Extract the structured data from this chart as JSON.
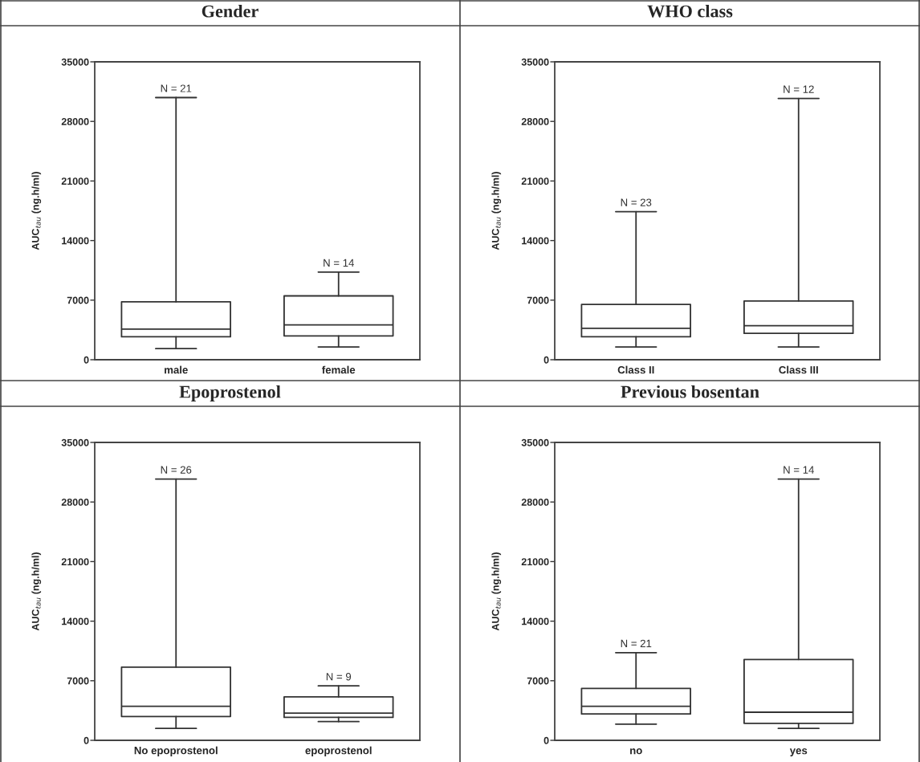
{
  "chart_data": [
    {
      "type": "box",
      "title": "Gender",
      "ylabel": "AUC$_{tau}$ (ng.h/ml)",
      "categories": [
        "male",
        "female"
      ],
      "ylim": [
        0,
        35000
      ],
      "yticks": [
        0,
        7000,
        14000,
        21000,
        28000,
        35000
      ],
      "grid": false,
      "boxes": [
        {
          "low": 1300,
          "q1": 2700,
          "median": 3600,
          "q3": 6800,
          "high": 30800
        },
        {
          "low": 1500,
          "q1": 2800,
          "median": 4100,
          "q3": 7500,
          "high": 10300
        }
      ],
      "annotations": [
        {
          "text": "N = 21",
          "x": "male",
          "y": 30800
        },
        {
          "text": "N = 14",
          "x": "female",
          "y": 10300
        }
      ]
    },
    {
      "type": "box",
      "title": "WHO class",
      "ylabel": "AUC$_{tau}$ (ng.h/ml)",
      "categories": [
        "Class II",
        "Class III"
      ],
      "ylim": [
        0,
        35000
      ],
      "yticks": [
        0,
        7000,
        14000,
        21000,
        28000,
        35000
      ],
      "grid": false,
      "boxes": [
        {
          "low": 1500,
          "q1": 2700,
          "median": 3700,
          "q3": 6500,
          "high": 17400
        },
        {
          "low": 1500,
          "q1": 3100,
          "median": 4000,
          "q3": 6900,
          "high": 30700
        }
      ],
      "annotations": [
        {
          "text": "N = 23",
          "x": "Class II",
          "y": 17400
        },
        {
          "text": "N = 12",
          "x": "Class III",
          "y": 30700
        }
      ]
    },
    {
      "type": "box",
      "title": "Epoprostenol",
      "ylabel": "AUC$_{tau}$ (ng.h/ml)",
      "categories": [
        "No epoprostenol",
        "epoprostenol"
      ],
      "ylim": [
        0,
        35000
      ],
      "yticks": [
        0,
        7000,
        14000,
        21000,
        28000,
        35000
      ],
      "grid": false,
      "boxes": [
        {
          "low": 1400,
          "q1": 2800,
          "median": 4000,
          "q3": 8600,
          "high": 30700
        },
        {
          "low": 2200,
          "q1": 2700,
          "median": 3200,
          "q3": 5100,
          "high": 6400
        }
      ],
      "annotations": [
        {
          "text": "N = 26",
          "x": "No epoprostenol",
          "y": 30700
        },
        {
          "text": "N = 9",
          "x": "epoprostenol",
          "y": 6400
        }
      ]
    },
    {
      "type": "box",
      "title": "Previous bosentan",
      "ylabel": "AUC$_{tau}$ (ng.h/ml)",
      "categories": [
        "no",
        "yes"
      ],
      "ylim": [
        0,
        35000
      ],
      "yticks": [
        0,
        7000,
        14000,
        21000,
        28000,
        35000
      ],
      "grid": false,
      "boxes": [
        {
          "low": 1900,
          "q1": 3100,
          "median": 4000,
          "q3": 6100,
          "high": 10300
        },
        {
          "low": 1400,
          "q1": 2000,
          "median": 3300,
          "q3": 9500,
          "high": 30700
        }
      ],
      "annotations": [
        {
          "text": "N = 21",
          "x": "no",
          "y": 10300
        },
        {
          "text": "N = 14",
          "x": "yes",
          "y": 30700
        }
      ]
    }
  ]
}
